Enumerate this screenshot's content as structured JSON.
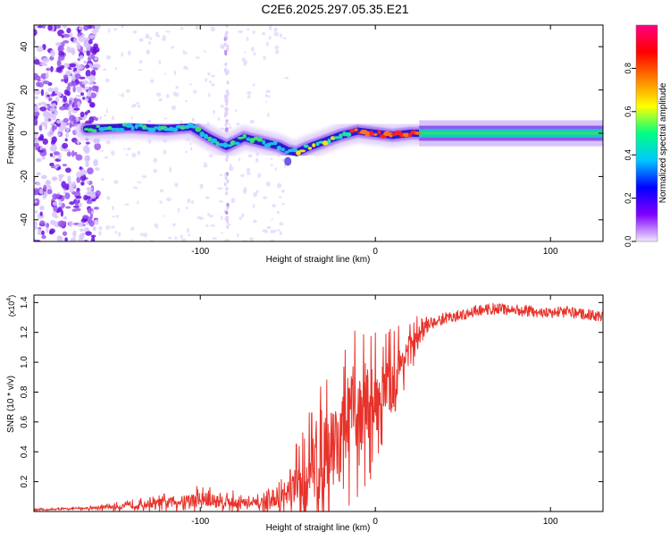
{
  "page": {
    "title": "C2E6.2025.297.05.35.E21"
  },
  "chart_data": [
    {
      "type": "heatmap",
      "name": "spectrogram",
      "xlabel": "Height of straight line (km)",
      "ylabel": "Frequency (Hz)",
      "xlim": [
        -195,
        130
      ],
      "ylim": [
        -50,
        50
      ],
      "x_ticks": [
        -100,
        0,
        100
      ],
      "x_tick_labels": [
        "-100",
        "0",
        "100"
      ],
      "y_ticks": [
        -40,
        -20,
        0,
        20,
        40
      ],
      "y_tick_labels": [
        "-40",
        "-20",
        "0",
        "20",
        "40"
      ],
      "colorbar": {
        "label": "Normalized spectral amplitude",
        "range": [
          0,
          1
        ],
        "ticks": [
          0.0,
          0.2,
          0.4,
          0.6,
          0.8
        ],
        "tick_labels": [
          "0.0",
          "0.2",
          "0.4",
          "0.6",
          "0.8"
        ],
        "colors": [
          "#f0e8ff",
          "#8000ff",
          "#0000ff",
          "#00c8ff",
          "#00ff80",
          "#ffff00",
          "#ff8000",
          "#ff0000",
          "#ff0080"
        ]
      },
      "ridge": {
        "x": [
          -165,
          -140,
          -120,
          -105,
          -95,
          -85,
          -75,
          -65,
          -55,
          -50,
          -45,
          -40,
          -30,
          -20,
          -10,
          0,
          10,
          20,
          30,
          60,
          100,
          130
        ],
        "frequency": [
          2,
          3,
          2,
          3,
          -2,
          -6,
          -2,
          -4,
          -6,
          -8,
          -9,
          -7,
          -4,
          -1,
          1,
          0,
          -1,
          0,
          0,
          0,
          0,
          0
        ]
      },
      "noise_region_x": [
        -195,
        -160
      ]
    },
    {
      "type": "line",
      "name": "snr",
      "xlabel": "Height of straight line (km)",
      "ylabel": "SNR (10 * v/v)",
      "multiplier_label": "(x10",
      "multiplier_exponent": "4",
      "multiplier_close": ")",
      "xlim": [
        -195,
        130
      ],
      "ylim": [
        0,
        1.45
      ],
      "x_ticks": [
        -100,
        0,
        100
      ],
      "x_tick_labels": [
        "-100",
        "0",
        "100"
      ],
      "y_ticks": [
        0.2,
        0.4,
        0.6,
        0.8,
        1.0,
        1.2,
        1.4
      ],
      "y_tick_labels": [
        "0.2",
        "0.4",
        "0.6",
        "0.8",
        "1.0",
        "1.2",
        "1.4"
      ],
      "line_color": "#e8322a",
      "envelope": {
        "x": [
          -195,
          -170,
          -150,
          -130,
          -110,
          -100,
          -90,
          -80,
          -70,
          -60,
          -50,
          -45,
          -40,
          -35,
          -30,
          -25,
          -20,
          -15,
          -10,
          -5,
          0,
          5,
          10,
          15,
          20,
          30,
          40,
          50,
          60,
          70,
          80,
          90,
          100,
          110,
          120,
          130
        ],
        "base": [
          0.01,
          0.02,
          0.03,
          0.05,
          0.07,
          0.08,
          0.07,
          0.06,
          0.05,
          0.06,
          0.1,
          0.15,
          0.2,
          0.3,
          0.35,
          0.45,
          0.5,
          0.6,
          0.65,
          0.7,
          0.75,
          0.8,
          0.85,
          1.0,
          1.1,
          1.25,
          1.3,
          1.32,
          1.35,
          1.36,
          1.35,
          1.34,
          1.33,
          1.34,
          1.32,
          1.31
        ],
        "spread": [
          0.01,
          0.01,
          0.03,
          0.05,
          0.08,
          0.12,
          0.1,
          0.08,
          0.06,
          0.1,
          0.2,
          0.35,
          0.45,
          0.5,
          0.5,
          0.55,
          0.55,
          0.6,
          0.6,
          0.55,
          0.5,
          0.45,
          0.4,
          0.3,
          0.2,
          0.1,
          0.08,
          0.06,
          0.05,
          0.04,
          0.04,
          0.04,
          0.04,
          0.03,
          0.03,
          0.03
        ]
      }
    }
  ]
}
